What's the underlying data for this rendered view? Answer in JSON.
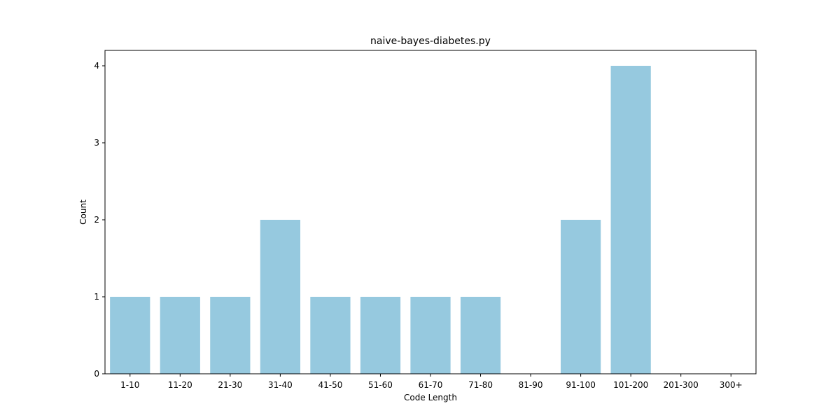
{
  "chart_data": {
    "type": "bar",
    "title": "naive-bayes-diabetes.py",
    "xlabel": "Code Length",
    "ylabel": "Count",
    "categories": [
      "1-10",
      "11-20",
      "21-30",
      "31-40",
      "41-50",
      "51-60",
      "61-70",
      "71-80",
      "81-90",
      "91-100",
      "101-200",
      "201-300",
      "300+"
    ],
    "values": [
      1,
      1,
      1,
      2,
      1,
      1,
      1,
      1,
      0,
      2,
      4,
      0,
      0
    ],
    "ylim": [
      0,
      4.2
    ],
    "yticks": [
      "0",
      "1",
      "2",
      "3",
      "4"
    ],
    "bar_color": "#96c9df",
    "grid": false,
    "legend": "none"
  }
}
